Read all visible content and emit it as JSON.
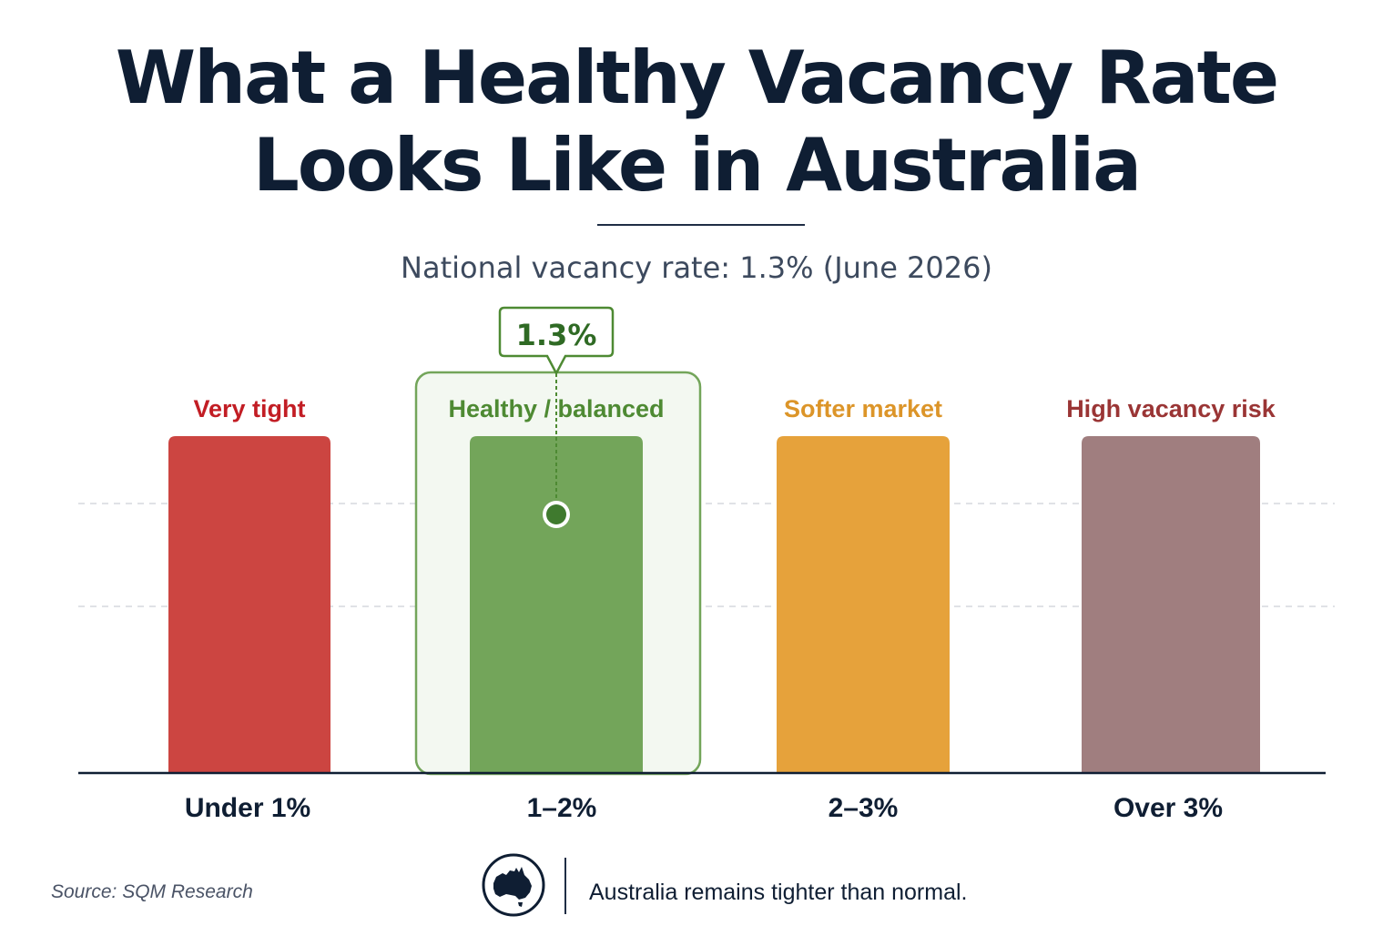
{
  "title": "What a Healthy Vacancy Rate\nLooks Like in Australia",
  "subtitle": "National vacancy rate: 1.3% (June 2026)",
  "chart_data": {
    "type": "bar",
    "categories": [
      "Under 1%",
      "1–2%",
      "2–3%",
      "Over 3%"
    ],
    "bands": [
      {
        "label": "Very tight",
        "range": "Under 1%",
        "color": "#cc4541"
      },
      {
        "label": "Healthy / balanced",
        "range": "1–2%",
        "color": "#73a55a",
        "highlighted": true
      },
      {
        "label": "Softer market",
        "range": "2–3%",
        "color": "#e6a23b"
      },
      {
        "label": "High vacancy risk",
        "range": "Over 3%",
        "color": "#a07e7f"
      }
    ],
    "label_colors": [
      "#c21d24",
      "#4e8a33",
      "#dc9529",
      "#9a3535"
    ],
    "marker": {
      "label": "1.3%",
      "value": 1.3,
      "category": "1–2%"
    },
    "grid": "dashed horizontal",
    "legend": "none"
  },
  "footer": {
    "source": "Source: SQM Research",
    "note": "Australia remains tighter than normal.",
    "icon": "australia-map-icon"
  }
}
